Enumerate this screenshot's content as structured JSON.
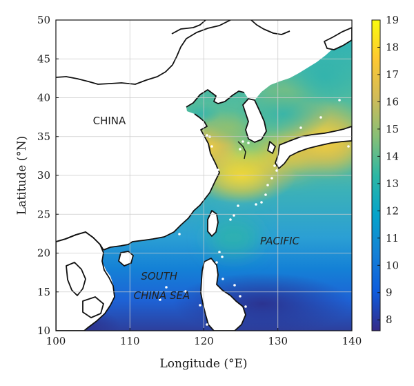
{
  "chart_data": {
    "type": "heatmap",
    "xlabel": "Longitude (°E)",
    "ylabel": "Latitude (°N)",
    "xlim": [
      100,
      140
    ],
    "ylim": [
      10,
      50
    ],
    "x_ticks": [
      "100",
      "110",
      "120",
      "130",
      "140"
    ],
    "y_ticks": [
      "10",
      "15",
      "20",
      "25",
      "30",
      "35",
      "40",
      "45",
      "50"
    ],
    "grid": true,
    "colorbar": {
      "min": 7.6,
      "max": 19,
      "ticks": [
        "8",
        "9",
        "10",
        "11",
        "12",
        "13",
        "14",
        "15",
        "16",
        "17",
        "18",
        "19"
      ],
      "colormap": "parula",
      "stops": [
        "#352a87",
        "#0f5cdd",
        "#1481d6",
        "#06a4ca",
        "#2eb7a4",
        "#87bf77",
        "#d1bb59",
        "#fec832",
        "#f9fb0e"
      ]
    },
    "region_labels": [
      {
        "text": "CHINA",
        "lon": 105,
        "lat": 36.6,
        "italic": false
      },
      {
        "text": "PACIFIC",
        "lon": 127.6,
        "lat": 21.1,
        "italic": true
      },
      {
        "text": "SOUTH",
        "lon": 111.5,
        "lat": 16.6,
        "italic": true
      },
      {
        "text": "CHINA SEA",
        "lon": 110.5,
        "lat": 14.1,
        "italic": true
      }
    ],
    "field_centers": [
      {
        "lon": 125,
        "lat": 30.5,
        "value": 18.6
      },
      {
        "lon": 131,
        "lat": 32.5,
        "value": 17.5
      },
      {
        "lon": 137,
        "lat": 34,
        "value": 16.5
      },
      {
        "lon": 121,
        "lat": 34,
        "value": 15.5
      },
      {
        "lon": 131,
        "lat": 40,
        "value": 13.5
      },
      {
        "lon": 124,
        "lat": 22,
        "value": 13
      }
    ]
  }
}
